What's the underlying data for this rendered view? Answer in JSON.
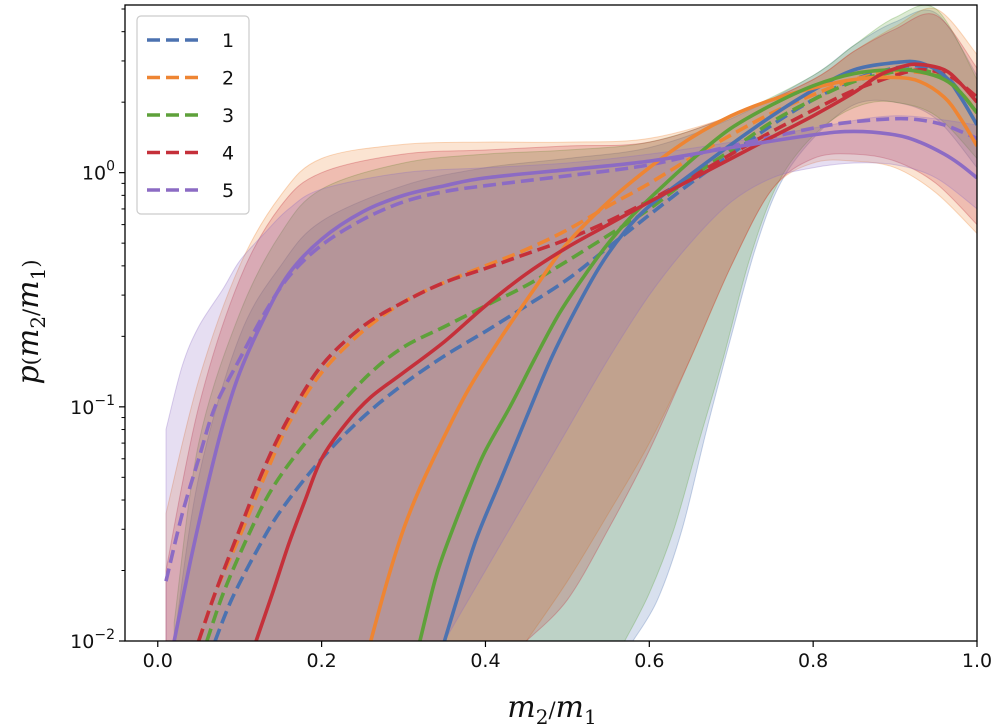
{
  "chart_data": {
    "type": "line",
    "title": "",
    "xlabel": "m2/m1",
    "ylabel": "p(m2/m1)",
    "xlim": [
      -0.04,
      1.0
    ],
    "ylim": [
      0.01,
      5.2
    ],
    "yscale": "log",
    "grid": false,
    "legend_position": "top-left",
    "x_ticks": [
      {
        "value": 0.0,
        "label": "0.0"
      },
      {
        "value": 0.2,
        "label": "0.2"
      },
      {
        "value": 0.4,
        "label": "0.4"
      },
      {
        "value": 0.6,
        "label": "0.6"
      },
      {
        "value": 0.8,
        "label": "0.8"
      },
      {
        "value": 1.0,
        "label": "1.0"
      }
    ],
    "y_ticks": [
      {
        "value": 0.01,
        "base": "10",
        "exp": "−2"
      },
      {
        "value": 0.1,
        "base": "10",
        "exp": "−1"
      },
      {
        "value": 1,
        "base": "10",
        "exp": "0"
      }
    ],
    "series": [
      {
        "name": "1",
        "color": "#4c72b0",
        "solid": {
          "x": [
            0.35,
            0.37,
            0.39,
            0.42,
            0.45,
            0.48,
            0.51,
            0.54,
            0.57,
            0.6,
            0.65,
            0.7,
            0.75,
            0.8,
            0.85,
            0.9,
            0.93,
            0.96,
            0.98,
            1.0
          ],
          "y": [
            0.01,
            0.017,
            0.028,
            0.05,
            0.09,
            0.16,
            0.26,
            0.4,
            0.56,
            0.72,
            0.98,
            1.32,
            1.75,
            2.25,
            2.75,
            2.95,
            2.95,
            2.6,
            2.1,
            1.6
          ]
        },
        "dashed": {
          "x": [
            0.07,
            0.09,
            0.12,
            0.15,
            0.2,
            0.25,
            0.3,
            0.35,
            0.4,
            0.45,
            0.5,
            0.55,
            0.6,
            0.65,
            0.7,
            0.75,
            0.8,
            0.85,
            0.9,
            0.93,
            0.96,
            0.98,
            1.0
          ],
          "y": [
            0.01,
            0.015,
            0.024,
            0.036,
            0.06,
            0.09,
            0.125,
            0.165,
            0.21,
            0.27,
            0.35,
            0.48,
            0.66,
            0.9,
            1.2,
            1.6,
            2.05,
            2.5,
            2.8,
            2.85,
            2.6,
            2.2,
            1.8
          ]
        },
        "band_upper": {
          "x": [
            0.02,
            0.05,
            0.1,
            0.15,
            0.2,
            0.3,
            0.4,
            0.5,
            0.6,
            0.7,
            0.8,
            0.85,
            0.9,
            0.95,
            1.0
          ],
          "y": [
            0.01,
            0.05,
            0.2,
            0.4,
            0.62,
            0.88,
            1.05,
            1.15,
            1.28,
            1.7,
            2.6,
            3.5,
            4.4,
            4.8,
            2.6
          ]
        },
        "band_lower": {
          "x": [
            0.58,
            0.61,
            0.64,
            0.67,
            0.7,
            0.73,
            0.76,
            0.8,
            0.85,
            0.9,
            0.95,
            1.0
          ],
          "y": [
            0.01,
            0.015,
            0.03,
            0.08,
            0.2,
            0.48,
            0.9,
            1.4,
            1.95,
            2.0,
            1.7,
            1.05
          ]
        }
      },
      {
        "name": "2",
        "color": "#ee8533",
        "solid": {
          "x": [
            0.26,
            0.28,
            0.3,
            0.32,
            0.35,
            0.38,
            0.42,
            0.46,
            0.5,
            0.55,
            0.6,
            0.65,
            0.7,
            0.75,
            0.8,
            0.85,
            0.9,
            0.93,
            0.96,
            0.98,
            1.0
          ],
          "y": [
            0.01,
            0.018,
            0.03,
            0.045,
            0.075,
            0.12,
            0.2,
            0.32,
            0.5,
            0.75,
            1.05,
            1.4,
            1.75,
            2.05,
            2.3,
            2.5,
            2.55,
            2.45,
            2.1,
            1.7,
            1.3
          ]
        },
        "dashed": {
          "x": [
            0.05,
            0.07,
            0.1,
            0.13,
            0.16,
            0.2,
            0.25,
            0.3,
            0.35,
            0.4,
            0.45,
            0.5,
            0.55,
            0.6,
            0.65,
            0.7,
            0.75,
            0.8,
            0.85,
            0.9,
            0.95,
            0.98,
            1.0
          ],
          "y": [
            0.01,
            0.016,
            0.028,
            0.05,
            0.085,
            0.14,
            0.21,
            0.28,
            0.34,
            0.4,
            0.47,
            0.57,
            0.72,
            0.9,
            1.15,
            1.45,
            1.8,
            2.15,
            2.5,
            2.7,
            2.6,
            2.2,
            1.8
          ]
        },
        "band_upper": {
          "x": [
            0.01,
            0.05,
            0.1,
            0.15,
            0.2,
            0.3,
            0.4,
            0.5,
            0.6,
            0.7,
            0.8,
            0.85,
            0.9,
            0.95,
            1.0
          ],
          "y": [
            0.035,
            0.13,
            0.4,
            0.8,
            1.15,
            1.32,
            1.35,
            1.35,
            1.4,
            1.75,
            2.5,
            3.3,
            4.2,
            5.0,
            3.2
          ]
        },
        "band_lower": {
          "x": [
            0.45,
            0.5,
            0.55,
            0.6,
            0.65,
            0.7,
            0.75,
            0.8,
            0.85,
            0.9,
            0.95,
            1.0
          ],
          "y": [
            0.01,
            0.018,
            0.035,
            0.07,
            0.16,
            0.4,
            0.85,
            1.1,
            1.12,
            1.05,
            0.82,
            0.55
          ]
        }
      },
      {
        "name": "3",
        "color": "#5ea13a",
        "solid": {
          "x": [
            0.32,
            0.34,
            0.36,
            0.38,
            0.4,
            0.43,
            0.46,
            0.49,
            0.52,
            0.55,
            0.58,
            0.62,
            0.66,
            0.7,
            0.75,
            0.8,
            0.85,
            0.9,
            0.93,
            0.96,
            0.98,
            1.0
          ],
          "y": [
            0.01,
            0.019,
            0.03,
            0.045,
            0.065,
            0.1,
            0.16,
            0.25,
            0.36,
            0.5,
            0.66,
            0.9,
            1.2,
            1.55,
            1.95,
            2.35,
            2.65,
            2.75,
            2.7,
            2.5,
            2.2,
            1.8
          ]
        },
        "dashed": {
          "x": [
            0.06,
            0.08,
            0.11,
            0.14,
            0.18,
            0.22,
            0.26,
            0.3,
            0.35,
            0.4,
            0.45,
            0.5,
            0.55,
            0.6,
            0.65,
            0.7,
            0.75,
            0.8,
            0.85,
            0.9,
            0.93,
            0.96,
            0.98,
            1.0
          ],
          "y": [
            0.01,
            0.016,
            0.028,
            0.045,
            0.07,
            0.1,
            0.14,
            0.18,
            0.22,
            0.27,
            0.33,
            0.42,
            0.54,
            0.7,
            0.95,
            1.25,
            1.65,
            2.05,
            2.45,
            2.7,
            2.75,
            2.55,
            2.2,
            1.8
          ]
        },
        "band_upper": {
          "x": [
            0.02,
            0.05,
            0.1,
            0.15,
            0.2,
            0.3,
            0.4,
            0.5,
            0.6,
            0.7,
            0.8,
            0.85,
            0.9,
            0.95,
            1.0
          ],
          "y": [
            0.012,
            0.07,
            0.25,
            0.55,
            0.85,
            1.1,
            1.2,
            1.25,
            1.35,
            1.75,
            2.6,
            3.5,
            4.6,
            5.0,
            2.5
          ]
        },
        "band_lower": {
          "x": [
            0.57,
            0.6,
            0.63,
            0.66,
            0.69,
            0.72,
            0.75,
            0.78,
            0.82,
            0.86,
            0.9,
            0.95,
            1.0
          ],
          "y": [
            0.01,
            0.016,
            0.03,
            0.07,
            0.16,
            0.4,
            0.8,
            1.2,
            1.65,
            1.95,
            2.0,
            1.75,
            1.15
          ]
        }
      },
      {
        "name": "4",
        "color": "#c5303a",
        "solid": {
          "x": [
            0.12,
            0.14,
            0.16,
            0.18,
            0.2,
            0.23,
            0.26,
            0.3,
            0.35,
            0.4,
            0.45,
            0.5,
            0.55,
            0.6,
            0.65,
            0.7,
            0.75,
            0.8,
            0.85,
            0.88,
            0.91,
            0.93,
            0.96,
            0.98,
            1.0
          ],
          "y": [
            0.01,
            0.016,
            0.026,
            0.04,
            0.06,
            0.085,
            0.11,
            0.14,
            0.19,
            0.27,
            0.37,
            0.48,
            0.6,
            0.75,
            0.93,
            1.15,
            1.42,
            1.75,
            2.2,
            2.6,
            2.85,
            2.9,
            2.75,
            2.4,
            2.0
          ]
        },
        "dashed": {
          "x": [
            0.05,
            0.07,
            0.1,
            0.13,
            0.16,
            0.2,
            0.25,
            0.3,
            0.35,
            0.4,
            0.45,
            0.5,
            0.55,
            0.6,
            0.65,
            0.7,
            0.75,
            0.8,
            0.85,
            0.9,
            0.93,
            0.96,
            0.98,
            1.0
          ],
          "y": [
            0.01,
            0.016,
            0.03,
            0.055,
            0.09,
            0.15,
            0.22,
            0.28,
            0.34,
            0.39,
            0.45,
            0.52,
            0.62,
            0.76,
            0.95,
            1.2,
            1.5,
            1.85,
            2.25,
            2.6,
            2.75,
            2.65,
            2.4,
            2.1
          ]
        },
        "band_upper": {
          "x": [
            0.01,
            0.05,
            0.1,
            0.15,
            0.2,
            0.3,
            0.4,
            0.5,
            0.6,
            0.7,
            0.8,
            0.85,
            0.9,
            0.95,
            1.0
          ],
          "y": [
            0.02,
            0.1,
            0.35,
            0.72,
            1.0,
            1.2,
            1.25,
            1.3,
            1.35,
            1.75,
            2.5,
            3.3,
            4.1,
            4.7,
            2.8
          ]
        },
        "band_lower": {
          "x": [
            0.45,
            0.5,
            0.55,
            0.6,
            0.65,
            0.7,
            0.75,
            0.8,
            0.85,
            0.9,
            0.95,
            1.0
          ],
          "y": [
            0.01,
            0.015,
            0.03,
            0.065,
            0.16,
            0.4,
            0.85,
            1.15,
            1.2,
            1.12,
            0.9,
            0.6
          ]
        }
      },
      {
        "name": "5",
        "color": "#8c6bc4",
        "solid": {
          "x": [
            0.02,
            0.04,
            0.06,
            0.08,
            0.1,
            0.13,
            0.16,
            0.2,
            0.25,
            0.3,
            0.35,
            0.4,
            0.5,
            0.6,
            0.7,
            0.8,
            0.85,
            0.9,
            0.93,
            0.96,
            0.98,
            1.0
          ],
          "y": [
            0.01,
            0.022,
            0.045,
            0.085,
            0.14,
            0.24,
            0.37,
            0.52,
            0.68,
            0.8,
            0.88,
            0.95,
            1.03,
            1.12,
            1.28,
            1.45,
            1.5,
            1.45,
            1.35,
            1.2,
            1.08,
            0.95
          ]
        },
        "dashed": {
          "x": [
            0.01,
            0.03,
            0.05,
            0.07,
            0.1,
            0.13,
            0.16,
            0.2,
            0.25,
            0.3,
            0.35,
            0.4,
            0.5,
            0.6,
            0.7,
            0.8,
            0.85,
            0.9,
            0.93,
            0.96,
            0.98,
            1.0
          ],
          "y": [
            0.018,
            0.035,
            0.06,
            0.1,
            0.16,
            0.25,
            0.36,
            0.49,
            0.63,
            0.75,
            0.83,
            0.88,
            0.97,
            1.08,
            1.3,
            1.55,
            1.65,
            1.7,
            1.68,
            1.6,
            1.5,
            1.4
          ]
        },
        "band_upper": {
          "x": [
            0.01,
            0.03,
            0.05,
            0.08,
            0.1,
            0.13,
            0.16,
            0.2,
            0.3,
            0.4,
            0.5,
            0.6,
            0.7,
            0.8,
            0.9,
            1.0
          ],
          "y": [
            0.08,
            0.15,
            0.22,
            0.32,
            0.42,
            0.55,
            0.7,
            0.85,
            1.0,
            1.05,
            1.1,
            1.2,
            1.35,
            1.55,
            1.75,
            1.6
          ]
        },
        "band_lower": {
          "x": [
            0.35,
            0.4,
            0.45,
            0.5,
            0.55,
            0.6,
            0.65,
            0.7,
            0.75,
            0.8,
            0.85,
            0.9,
            0.95,
            1.0
          ],
          "y": [
            0.01,
            0.02,
            0.04,
            0.08,
            0.16,
            0.3,
            0.5,
            0.75,
            0.95,
            1.05,
            1.1,
            1.08,
            0.95,
            0.7
          ]
        }
      }
    ]
  }
}
